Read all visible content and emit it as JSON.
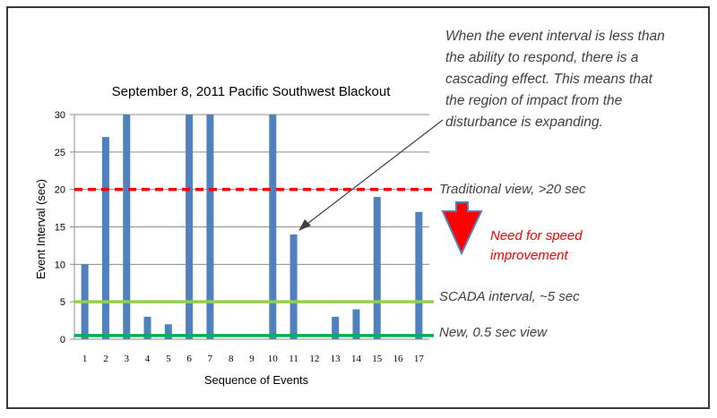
{
  "chart_data": {
    "type": "bar",
    "title": "September 8, 2011 Pacific Southwest Blackout",
    "xlabel": "Sequence of Events",
    "ylabel": "Event Interval (sec)",
    "categories": [
      "1",
      "2",
      "3",
      "4",
      "5",
      "6",
      "7",
      "8",
      "9",
      "10",
      "11",
      "12",
      "13",
      "14",
      "15",
      "16",
      "17"
    ],
    "values": [
      10,
      27,
      30,
      3,
      2,
      30,
      30,
      0,
      0,
      30,
      14,
      0,
      3,
      4,
      19,
      0,
      17
    ],
    "ylim": [
      0,
      30
    ],
    "yticks": [
      0,
      5,
      10,
      15,
      20,
      25,
      30
    ],
    "grid": true,
    "bar_color": "#4f81bd",
    "reference_lines": [
      {
        "value": 20,
        "color": "#ff0000",
        "style": "dashed",
        "label": "Traditional view, >20 sec"
      },
      {
        "value": 5,
        "color": "#92d050",
        "style": "solid",
        "label": "SCADA interval, ~5 sec"
      },
      {
        "value": 0.5,
        "color": "#00b050",
        "style": "solid",
        "label": "New, 0.5 sec view"
      }
    ]
  },
  "annotations": {
    "callout_lines": [
      "When the event interval is less than",
      "the ability to respond, there is a",
      "cascading effect. This means that",
      "the region of impact from the",
      "disturbance is expanding."
    ],
    "speed_lines": [
      "Need for speed",
      "improvement"
    ],
    "arrow_color": "#ff0000",
    "arrow_border_color": "#4f81bd"
  }
}
